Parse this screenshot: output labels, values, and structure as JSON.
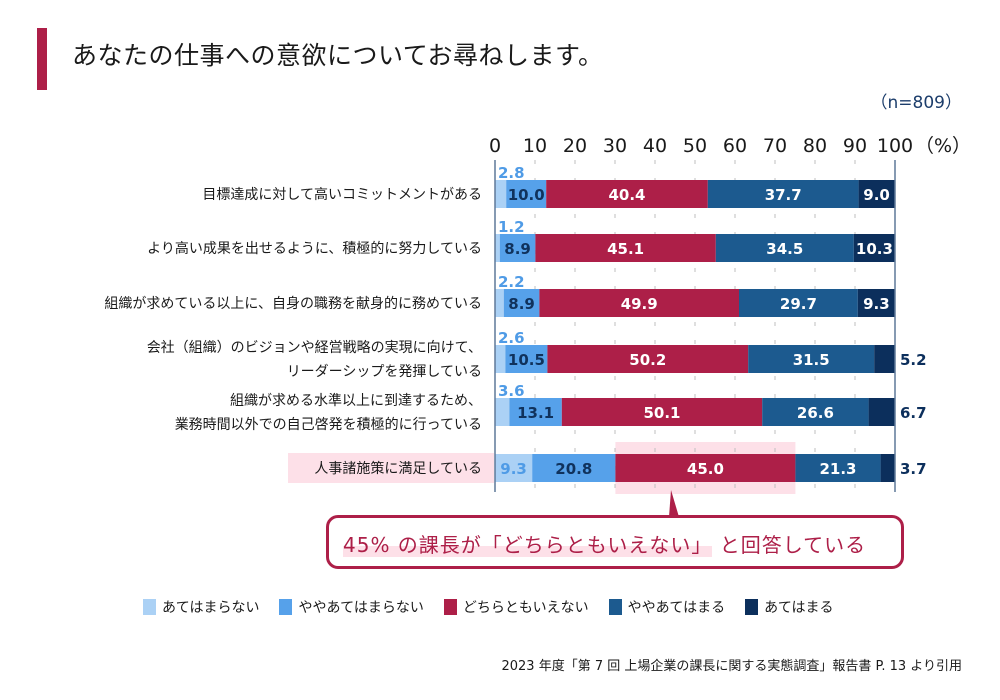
{
  "header": {
    "title": "あなたの仕事への意欲についてお尋ねします。",
    "sample_size": "（n=809）",
    "accent_color": "#ad1f48"
  },
  "chart_data": {
    "type": "bar",
    "orientation": "horizontal-stacked-100",
    "title": "あなたの仕事への意欲についてお尋ねします。",
    "xlabel": "",
    "ylabel": "",
    "xlim": [
      0,
      100
    ],
    "x_ticks": [
      "0",
      "10",
      "20",
      "30",
      "40",
      "50",
      "60",
      "70",
      "80",
      "90",
      "100"
    ],
    "x_unit_label": "（%）",
    "grid": "dashed vertical",
    "legend_position": "bottom",
    "categories": [
      [
        "目標達成に対して高いコミットメントがある"
      ],
      [
        "より高い成果を出せるように、積極的に努力している"
      ],
      [
        "組織が求めている以上に、自身の職務を献身的に務めている"
      ],
      [
        "会社（組織）のビジョンや経営戦略の実現に向けて、",
        "リーダーシップを発揮している"
      ],
      [
        "組織が求める水準以上に到達するため、",
        "業務時間以外での自己啓発を積極的に行っている"
      ],
      [
        "人事諸施策に満足している"
      ]
    ],
    "highlighted_category_index": 5,
    "series": [
      {
        "name": "あてはまらない",
        "color": "#abd1f5",
        "label_color": "#4f9be6",
        "values": [
          2.8,
          1.2,
          2.2,
          2.6,
          3.6,
          9.3
        ]
      },
      {
        "name": "ややあてはまらない",
        "color": "#56a1ea",
        "label_color": "#10325c",
        "values": [
          10.0,
          8.9,
          8.9,
          10.5,
          13.1,
          20.8
        ]
      },
      {
        "name": "どちらともいえない",
        "color": "#ad1f48",
        "label_color": "#ffffff",
        "values": [
          40.4,
          45.1,
          49.9,
          50.2,
          50.1,
          45.0
        ]
      },
      {
        "name": "ややあてはまる",
        "color": "#1c5a8f",
        "label_color": "#ffffff",
        "values": [
          37.7,
          34.5,
          29.7,
          31.5,
          26.6,
          21.3
        ]
      },
      {
        "name": "あてはまる",
        "color": "#0c2f5c",
        "label_color": "#ffffff",
        "outside_label_color": "#0c2f5c",
        "values": [
          9.0,
          10.3,
          9.3,
          5.2,
          6.7,
          3.7
        ]
      }
    ]
  },
  "callout": {
    "highlight_part": "45% の課長が「どちらともいえない」",
    "rest_part": "と回答している"
  },
  "source": "2023 年度「第 7 回 上場企業の課長に関する実態調査」報告書 P. 13 より引用"
}
